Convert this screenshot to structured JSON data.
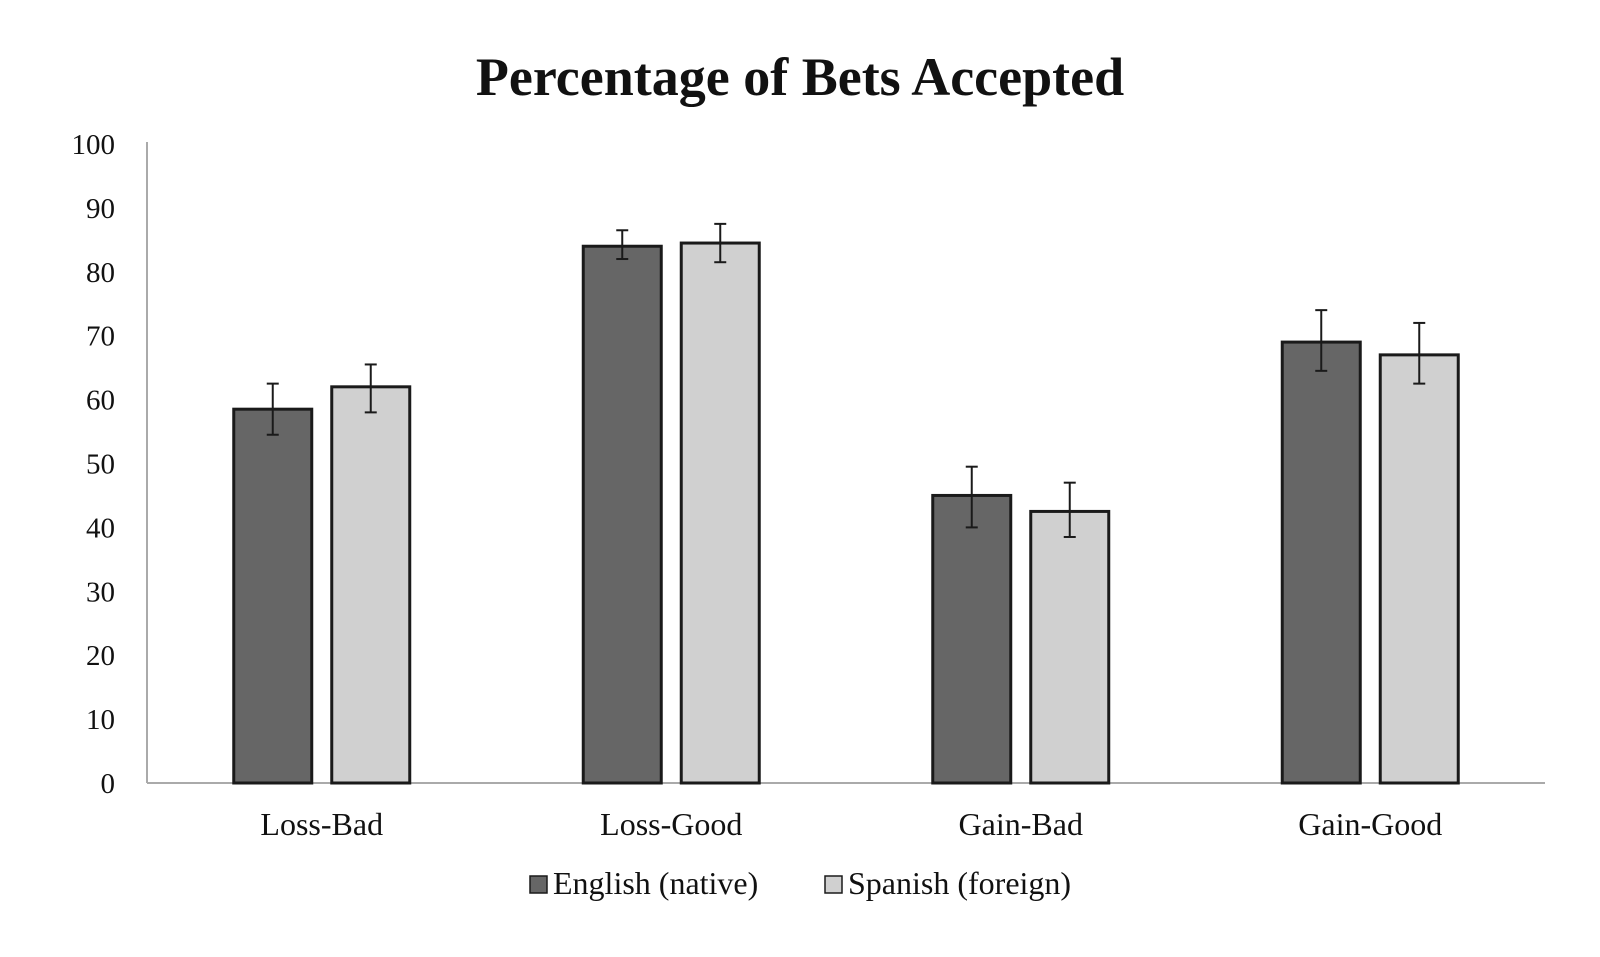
{
  "chart_data": {
    "type": "bar",
    "title": "Percentage of Bets Accepted",
    "xlabel": "",
    "ylabel": "",
    "categories": [
      "Loss-Bad",
      "Loss-Good",
      "Gain-Bad",
      "Gain-Good"
    ],
    "ylim": [
      0,
      100
    ],
    "yticks": [
      "0",
      "10",
      "20",
      "30",
      "40",
      "50",
      "60",
      "70",
      "80",
      "90",
      "100"
    ],
    "grid": false,
    "legend_position": "bottom",
    "series": [
      {
        "name": "English (native)",
        "color": "#666666",
        "values": [
          58.5,
          84,
          45,
          69
        ],
        "error_low": [
          54.5,
          82,
          40,
          64.5
        ],
        "error_high": [
          62.5,
          86.5,
          49.5,
          74
        ]
      },
      {
        "name": "Spanish (foreign)",
        "color": "#d0d0d0",
        "values": [
          62,
          84.5,
          42.5,
          67
        ],
        "error_low": [
          58,
          81.5,
          38.5,
          62.5
        ],
        "error_high": [
          65.5,
          87.5,
          47,
          72
        ]
      }
    ]
  }
}
